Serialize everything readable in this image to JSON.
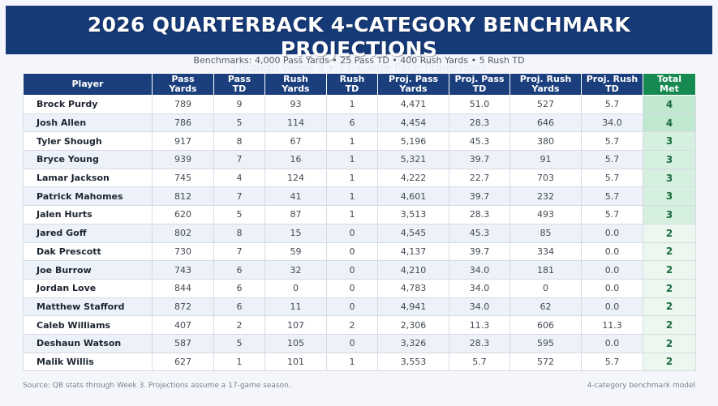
{
  "header": {
    "title": "2026 QUARTERBACK 4-CATEGORY BENCHMARK PROJECTIONS",
    "subtitle": "Through Week 3  •  17-Game Pace Projections"
  },
  "benchmarks": "Benchmarks: 4,000 Pass Yards  •  25 Pass TD  •  400 Rush Yards  •  5 Rush TD",
  "colors": {
    "header_bg": "#163a78",
    "table_header": "#1b3f7c",
    "total_header": "#178a52",
    "total_text": "#1b6b3f"
  },
  "chart_data": {
    "type": "table",
    "columns": [
      [
        "Player"
      ],
      [
        "Pass",
        "Yards"
      ],
      [
        "Pass",
        "TD"
      ],
      [
        "Rush",
        "Yards"
      ],
      [
        "Rush",
        "TD"
      ],
      [
        "Proj. Pass",
        "Yards"
      ],
      [
        "Proj. Pass",
        "TD"
      ],
      [
        "Proj. Rush",
        "Yards"
      ],
      [
        "Proj. Rush",
        "TD"
      ],
      [
        "Total",
        "Met"
      ]
    ],
    "rows": [
      [
        "Brock Purdy",
        "789",
        "9",
        "93",
        "1",
        "4,471",
        "51.0",
        "527",
        "5.7",
        "4"
      ],
      [
        "Josh Allen",
        "786",
        "5",
        "114",
        "6",
        "4,454",
        "28.3",
        "646",
        "34.0",
        "4"
      ],
      [
        "Tyler Shough",
        "917",
        "8",
        "67",
        "1",
        "5,196",
        "45.3",
        "380",
        "5.7",
        "3"
      ],
      [
        "Bryce Young",
        "939",
        "7",
        "16",
        "1",
        "5,321",
        "39.7",
        "91",
        "5.7",
        "3"
      ],
      [
        "Lamar Jackson",
        "745",
        "4",
        "124",
        "1",
        "4,222",
        "22.7",
        "703",
        "5.7",
        "3"
      ],
      [
        "Patrick Mahomes",
        "812",
        "7",
        "41",
        "1",
        "4,601",
        "39.7",
        "232",
        "5.7",
        "3"
      ],
      [
        "Jalen Hurts",
        "620",
        "5",
        "87",
        "1",
        "3,513",
        "28.3",
        "493",
        "5.7",
        "3"
      ],
      [
        "Jared Goff",
        "802",
        "8",
        "15",
        "0",
        "4,545",
        "45.3",
        "85",
        "0.0",
        "2"
      ],
      [
        "Dak Prescott",
        "730",
        "7",
        "59",
        "0",
        "4,137",
        "39.7",
        "334",
        "0.0",
        "2"
      ],
      [
        "Joe Burrow",
        "743",
        "6",
        "32",
        "0",
        "4,210",
        "34.0",
        "181",
        "0.0",
        "2"
      ],
      [
        "Jordan Love",
        "844",
        "6",
        "0",
        "0",
        "4,783",
        "34.0",
        "0",
        "0.0",
        "2"
      ],
      [
        "Matthew Stafford",
        "872",
        "6",
        "11",
        "0",
        "4,941",
        "34.0",
        "62",
        "0.0",
        "2"
      ],
      [
        "Caleb Williams",
        "407",
        "2",
        "107",
        "2",
        "2,306",
        "11.3",
        "606",
        "11.3",
        "2"
      ],
      [
        "Deshaun Watson",
        "587",
        "5",
        "105",
        "0",
        "3,326",
        "28.3",
        "595",
        "0.0",
        "2"
      ],
      [
        "Malik Willis",
        "627",
        "1",
        "101",
        "1",
        "3,553",
        "5.7",
        "572",
        "5.7",
        "2"
      ]
    ]
  },
  "footer": {
    "source": "Source: QB stats through Week 3. Projections assume a 17-game season.",
    "model": "4-category benchmark model"
  }
}
